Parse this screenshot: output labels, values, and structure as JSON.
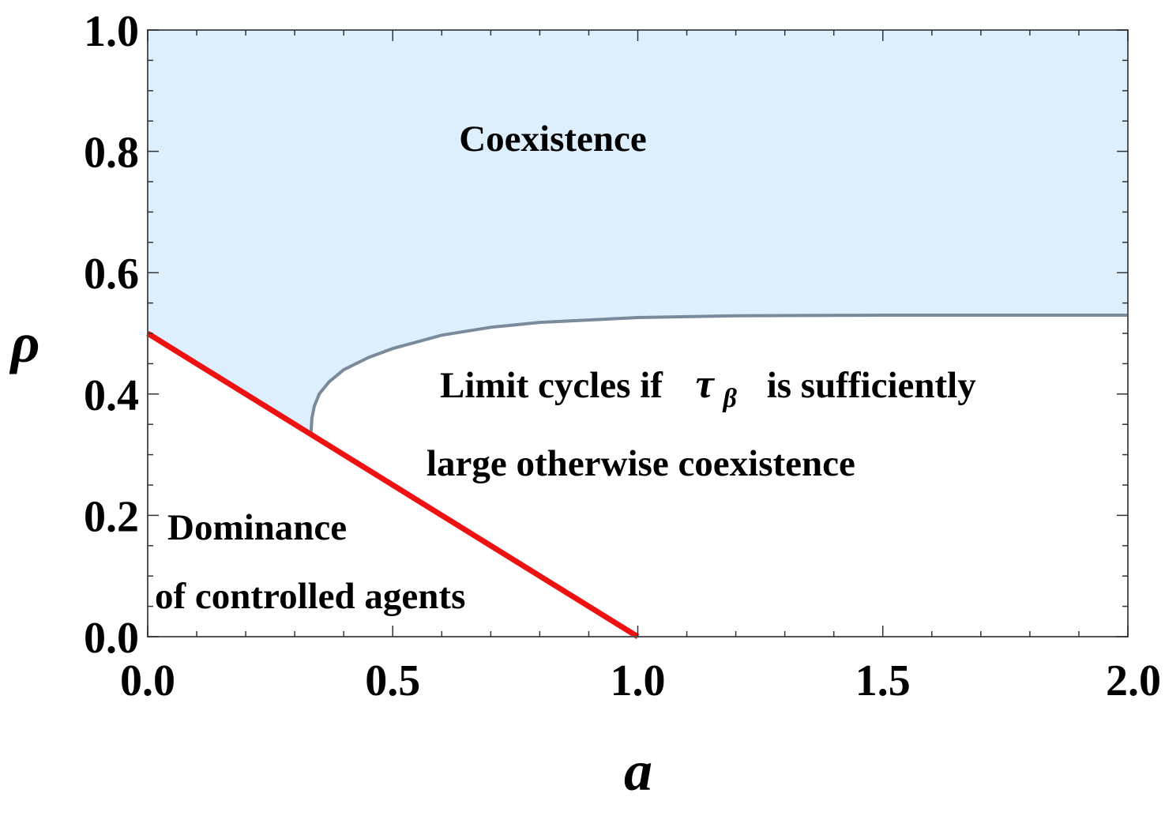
{
  "chart_data": {
    "type": "area",
    "title": "",
    "xlabel": "a",
    "ylabel": "ρ",
    "xlim": [
      0.0,
      2.0
    ],
    "ylim": [
      0.0,
      1.0
    ],
    "x_ticks": [
      "0.0",
      "0.5",
      "1.0",
      "1.5",
      "2.0"
    ],
    "y_ticks": [
      "0.0",
      "0.2",
      "0.4",
      "0.6",
      "0.8",
      "1.0"
    ],
    "x_tick_values": [
      0.0,
      0.5,
      1.0,
      1.5,
      2.0
    ],
    "y_tick_values": [
      0.0,
      0.2,
      0.4,
      0.6,
      0.8,
      1.0
    ],
    "grid": false,
    "colors": {
      "region_fill": "#ddeefd",
      "boundary_curve": "#7a8a9a",
      "red_line": "#ee1111",
      "frame": "#555555"
    },
    "series": [
      {
        "kind": "line",
        "x": [
          0.0,
          1.0
        ],
        "y": [
          0.5,
          0.0
        ]
      },
      {
        "kind": "curve",
        "x": [
          0.333,
          0.335,
          0.34,
          0.35,
          0.37,
          0.4,
          0.45,
          0.5,
          0.6,
          0.7,
          0.8,
          1.0,
          1.2,
          1.5,
          1.8,
          2.0
        ],
        "y": [
          0.333,
          0.36,
          0.38,
          0.4,
          0.42,
          0.44,
          0.46,
          0.475,
          0.497,
          0.51,
          0.518,
          0.526,
          0.529,
          0.53,
          0.53,
          0.53
        ]
      }
    ],
    "annotations": {
      "coexistence": "Coexistence",
      "limit_line1_pre": "Limit cycles if",
      "tau": "τ",
      "beta": "β",
      "limit_line1_post": "is sufficiently",
      "limit_line2": "large  otherwise coexistence",
      "dominance_line1": "Dominance",
      "dominance_line2": "of controlled agents"
    }
  }
}
